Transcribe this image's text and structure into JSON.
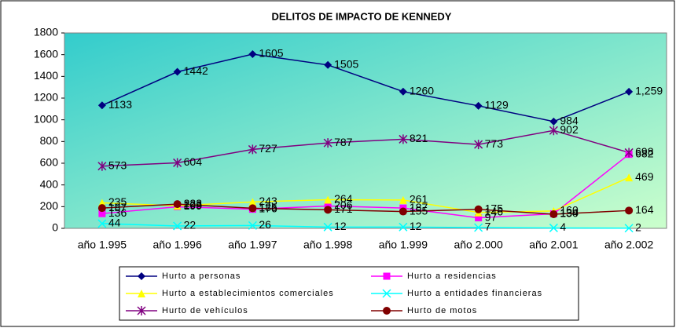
{
  "chart_data": {
    "type": "line",
    "title": "DELITOS DE IMPACTO DE KENNEDY",
    "categories": [
      "año 1.995",
      "año 1.996",
      "año 1.997",
      "año 1.998",
      "año 1.999",
      "año 2.000",
      "año 2.001",
      "año 2.002"
    ],
    "ylim": [
      0,
      1800
    ],
    "yticks": [
      0,
      200,
      400,
      600,
      800,
      1000,
      1200,
      1400,
      1600,
      1800
    ],
    "grid": false,
    "series": [
      {
        "name": "Hurto a personas",
        "color": "#000080",
        "marker": "diamond",
        "values": [
          1133,
          1442,
          1605,
          1505,
          1260,
          1129,
          984,
          1259
        ],
        "value_labels": [
          "1133",
          "1442",
          "1605",
          "1505",
          "1260",
          "1129",
          "984",
          "1,259"
        ]
      },
      {
        "name": "Hurto a residencias",
        "color": "#ff00ff",
        "marker": "square",
        "values": [
          136,
          199,
          176,
          206,
          187,
          97,
          134,
          682
        ]
      },
      {
        "name": "Hurto a establecimientos comerciales",
        "color": "#ffff00",
        "marker": "triangle",
        "values": [
          235,
          208,
          243,
          264,
          261,
          146,
          160,
          469
        ]
      },
      {
        "name": "Hurto a entidades financieras",
        "color": "#00ffff",
        "marker": "x",
        "values": [
          44,
          22,
          26,
          12,
          12,
          7,
          4,
          2
        ]
      },
      {
        "name": "Hurto de vehículos",
        "color": "#800080",
        "marker": "star",
        "values": [
          573,
          604,
          727,
          787,
          821,
          773,
          902,
          698
        ]
      },
      {
        "name": "Hurto de motos",
        "color": "#800000",
        "marker": "circle",
        "values": [
          187,
          223,
          185,
          171,
          155,
          175,
          130,
          164
        ]
      }
    ]
  }
}
